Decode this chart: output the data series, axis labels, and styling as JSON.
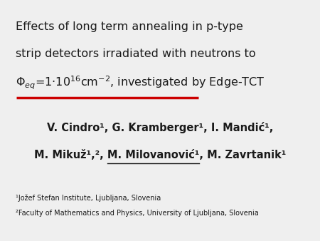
{
  "bg_color": "#efefef",
  "title_line1": "Effects of long term annealing in p-type",
  "title_line2": "strip detectors irradiated with neutrons to",
  "red_line_color": "#cc0000",
  "authors_line1": "V. Cindro¹, G. Kramberger¹, I. Mandić¹,",
  "authors_line2_pre": "M. Mikuž¹,², ",
  "authors_line2_underline": "M. Milovanović¹",
  "authors_line2_post": ", M. Zavrtanik¹",
  "affil1": "¹Jožef Stefan Institute, Ljubljana, Slovenia",
  "affil2": "²Faculty of Mathematics and Physics, University of Ljubljana, Slovenia",
  "title_fontsize": 11.5,
  "authors_fontsize": 10.5,
  "affil_fontsize": 7.0,
  "text_color": "#1a1a1a"
}
